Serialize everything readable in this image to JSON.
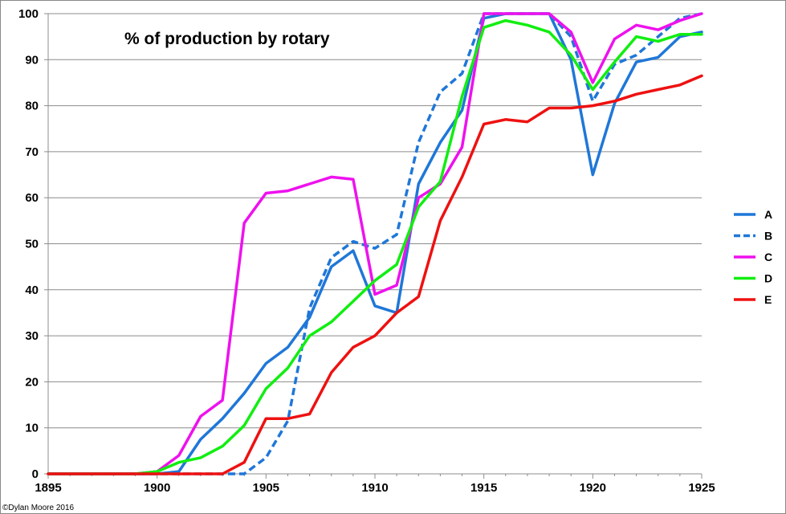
{
  "chart_data": {
    "type": "line",
    "title": "% of production by rotary",
    "xlabel": "",
    "ylabel": "",
    "xlim": [
      1895,
      1925
    ],
    "ylim": [
      0,
      100
    ],
    "x_ticks": [
      1895,
      1900,
      1905,
      1910,
      1915,
      1920,
      1925
    ],
    "y_ticks": [
      0,
      10,
      20,
      30,
      40,
      50,
      60,
      70,
      80,
      90,
      100
    ],
    "grid": true,
    "legend_position": "right",
    "x": [
      1895,
      1896,
      1897,
      1898,
      1899,
      1900,
      1901,
      1902,
      1903,
      1904,
      1905,
      1906,
      1907,
      1908,
      1909,
      1910,
      1911,
      1912,
      1913,
      1914,
      1915,
      1916,
      1917,
      1918,
      1919,
      1920,
      1921,
      1922,
      1923,
      1924,
      1925
    ],
    "series": [
      {
        "name": "A",
        "color": "#1f77d8",
        "dash": false,
        "values": [
          0,
          0,
          0,
          0,
          0,
          0,
          0.5,
          7.5,
          12,
          17.5,
          24,
          27.5,
          34,
          45,
          48.5,
          36.5,
          35,
          63,
          72,
          79,
          99,
          100,
          100,
          100,
          90,
          65,
          80.5,
          89.5,
          90.5,
          95,
          96
        ]
      },
      {
        "name": "B",
        "color": "#1f77d8",
        "dash": true,
        "values": [
          0,
          0,
          0,
          0,
          0,
          0,
          0,
          0,
          0,
          0,
          3.5,
          11.5,
          36,
          47,
          50.5,
          49,
          52,
          72,
          83,
          87,
          100,
          100,
          100,
          100,
          95,
          81,
          89,
          91,
          95,
          99,
          100
        ]
      },
      {
        "name": "C",
        "color": "#ee11ee",
        "dash": false,
        "values": [
          0,
          0,
          0,
          0,
          0,
          0.5,
          4,
          12.5,
          16,
          54.5,
          61,
          61.5,
          63,
          64.5,
          64,
          39,
          41,
          60,
          63,
          71,
          100,
          100,
          100,
          100,
          96,
          85,
          94.5,
          97.5,
          96.5,
          98.5,
          100
        ]
      },
      {
        "name": "D",
        "color": "#11ee11",
        "dash": false,
        "values": [
          0,
          0,
          0,
          0,
          0,
          0.5,
          2.5,
          3.5,
          6,
          10.5,
          18.5,
          23,
          30,
          33,
          37.5,
          42,
          45.5,
          58,
          63.5,
          82,
          97,
          98.5,
          97.5,
          96,
          91,
          83.5,
          89.5,
          95,
          94,
          95.5,
          95.5
        ]
      },
      {
        "name": "E",
        "color": "#ee1111",
        "dash": false,
        "values": [
          0,
          0,
          0,
          0,
          0,
          0,
          0,
          0,
          0,
          2.5,
          12,
          12,
          13,
          22,
          27.5,
          30,
          35,
          38.5,
          55,
          64.5,
          76,
          77,
          76.5,
          79.5,
          79.5,
          80,
          81,
          82.5,
          83.5,
          84.5,
          86.5
        ]
      }
    ],
    "credit": "©Dylan Moore 2016"
  }
}
